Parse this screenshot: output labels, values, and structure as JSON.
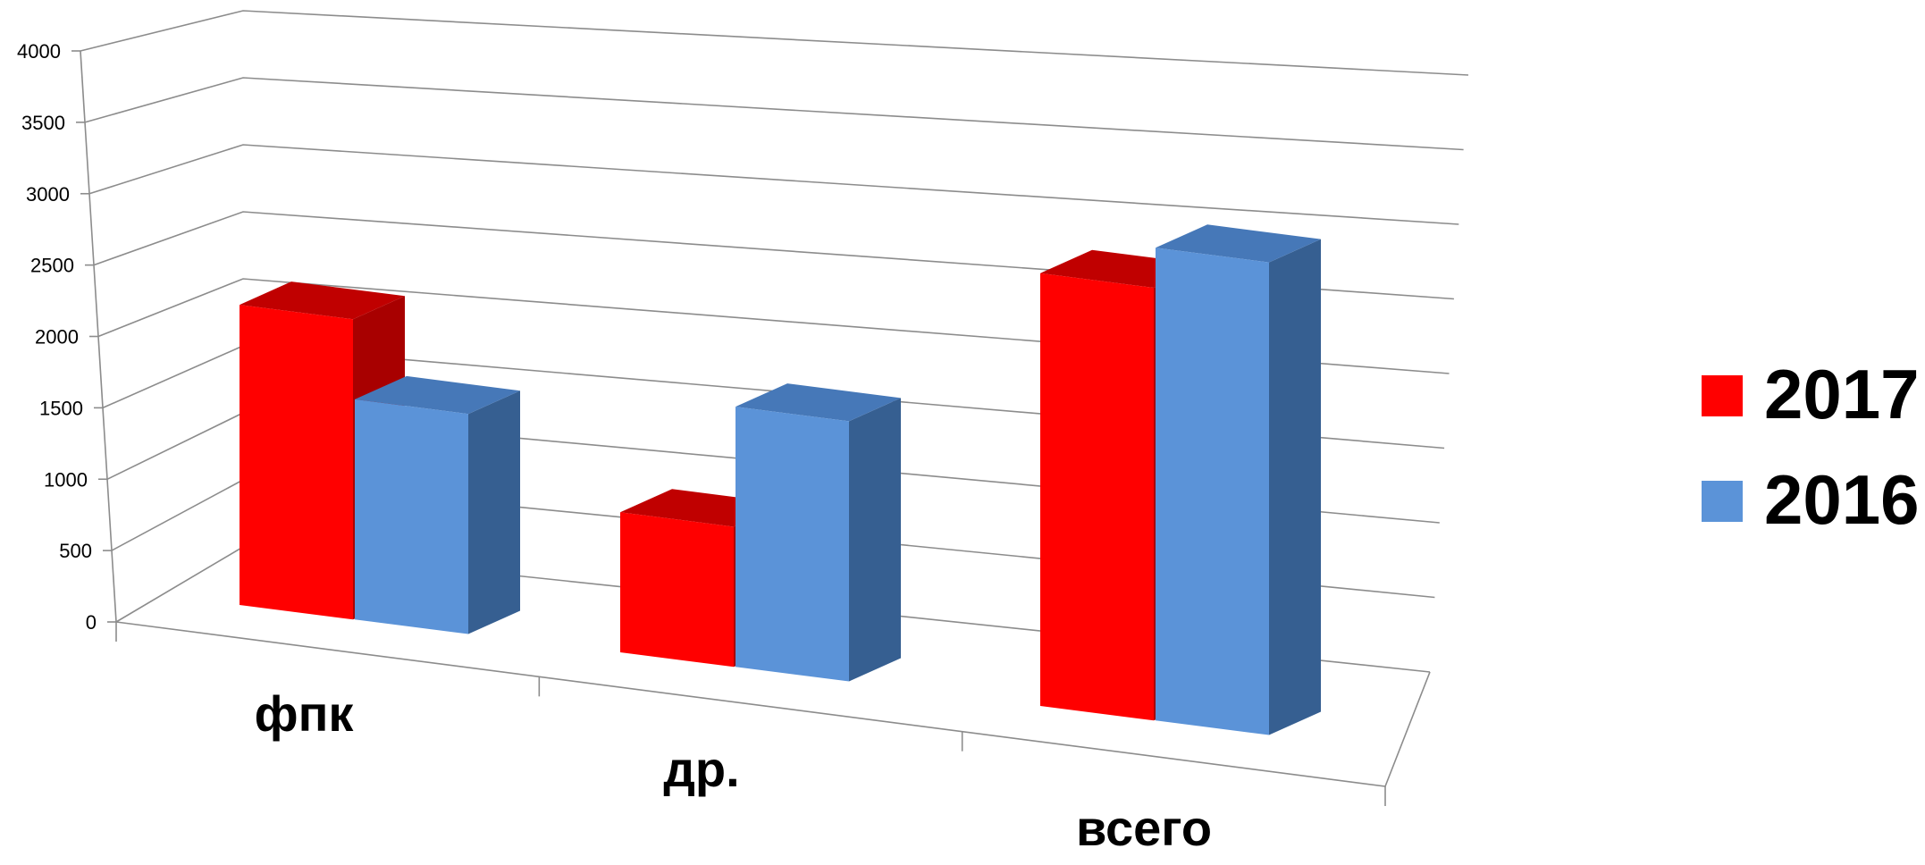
{
  "chart_data": {
    "type": "bar",
    "style": "3d-clustered-column",
    "categories": [
      "фпк",
      "др.",
      "всего"
    ],
    "series": [
      {
        "name": "2017",
        "values": [
          2250,
          1050,
          3250
        ],
        "color": "#ff0000",
        "side_color": "#a80000",
        "top_color": "#c00000"
      },
      {
        "name": "2016",
        "values": [
          1650,
          1950,
          3550
        ],
        "color": "#5b93d8",
        "side_color": "#365f91",
        "top_color": "#4678b8"
      }
    ],
    "ylim": [
      0,
      4000
    ],
    "yticks": [
      "0",
      "500",
      "1000",
      "1500",
      "2000",
      "2500",
      "3000",
      "3500",
      "4000"
    ],
    "grid": true,
    "legend_position": "right",
    "title": "",
    "xlabel": "",
    "ylabel": ""
  }
}
